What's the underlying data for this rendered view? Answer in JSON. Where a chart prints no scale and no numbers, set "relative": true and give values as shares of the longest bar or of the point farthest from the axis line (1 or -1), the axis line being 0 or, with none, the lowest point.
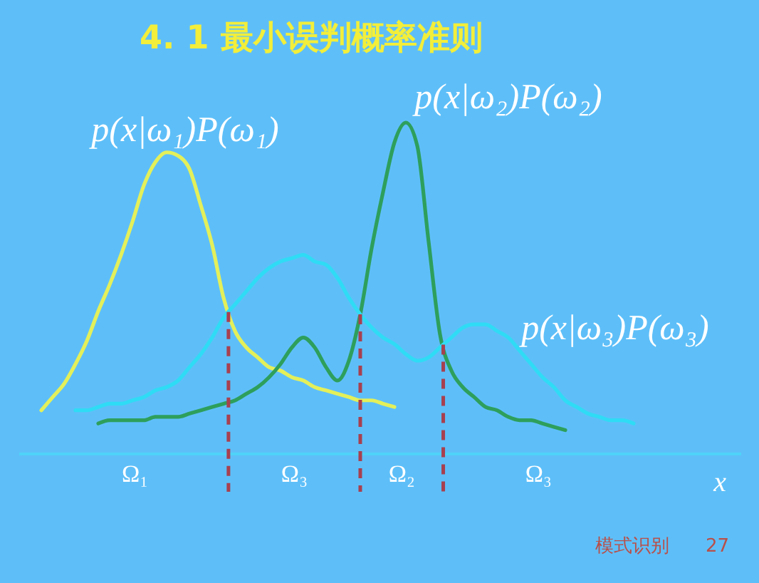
{
  "chart_data": {
    "type": "line",
    "title": "4. 1  最小误判概率准则",
    "xlabel": "x",
    "relative": true,
    "categories": [
      null,
      null,
      null,
      null,
      null,
      null,
      null,
      null,
      null,
      null,
      null,
      null,
      null,
      null,
      null,
      null,
      null,
      null,
      null,
      null,
      null,
      null,
      null,
      null,
      null,
      null,
      null,
      null,
      null,
      null,
      null,
      null,
      null,
      null,
      null,
      null,
      null,
      null,
      null,
      null,
      null,
      null,
      null,
      null,
      null,
      null,
      null,
      null,
      null,
      null,
      null,
      null,
      null
    ],
    "series": [
      {
        "name": "p(x|ω₁)P(ω₁)",
        "color": "#e4f05a",
        "values": [
          0.13,
          0.17,
          0.21,
          0.27,
          0.34,
          0.43,
          0.51,
          0.6,
          0.7,
          0.81,
          0.88,
          0.91,
          0.9,
          0.86,
          0.75,
          0.63,
          0.47,
          0.37,
          0.32,
          0.29,
          0.26,
          0.25,
          0.23,
          0.22,
          0.2,
          0.19,
          0.18,
          0.17,
          0.16,
          0.16,
          0.15,
          0.14,
          null,
          null,
          null,
          null,
          null,
          null,
          null,
          null,
          null,
          null,
          null,
          null,
          null,
          null,
          null,
          null,
          null,
          null,
          null,
          null,
          null
        ]
      },
      {
        "name": "p(x|ω₂)P(ω₂)",
        "color": "#2e9f5c",
        "values": [
          null,
          null,
          null,
          null,
          null,
          0.09,
          0.1,
          0.1,
          0.1,
          0.1,
          0.11,
          0.11,
          0.11,
          0.12,
          0.13,
          0.14,
          0.15,
          0.16,
          0.18,
          0.2,
          0.23,
          0.27,
          0.32,
          0.35,
          0.32,
          0.26,
          0.22,
          0.28,
          0.42,
          0.62,
          0.79,
          0.94,
          1.0,
          0.93,
          0.64,
          0.36,
          0.25,
          0.2,
          0.17,
          0.14,
          0.13,
          0.11,
          0.1,
          0.1,
          0.09,
          0.08,
          0.07,
          null,
          null,
          null,
          null,
          null,
          null
        ]
      },
      {
        "name": "p(x|ω₃)P(ω₃)",
        "color": "#2fdcf5",
        "values": [
          null,
          null,
          null,
          0.13,
          0.13,
          0.14,
          0.15,
          0.15,
          0.16,
          0.17,
          0.19,
          0.2,
          0.22,
          0.26,
          0.3,
          0.35,
          0.41,
          0.45,
          0.49,
          0.53,
          0.56,
          0.58,
          0.59,
          0.6,
          0.58,
          0.57,
          0.53,
          0.47,
          0.42,
          0.38,
          0.35,
          0.33,
          0.3,
          0.28,
          0.29,
          0.32,
          0.35,
          0.38,
          0.39,
          0.39,
          0.37,
          0.35,
          0.31,
          0.27,
          0.23,
          0.2,
          0.16,
          0.14,
          0.12,
          0.11,
          0.1,
          0.1,
          0.09
        ]
      }
    ],
    "ref_lines": [
      {
        "axis": "x",
        "color": "#a8404f",
        "line_style": "dashed"
      },
      {
        "axis": "x",
        "color": "#a8404f",
        "line_style": "dashed"
      },
      {
        "axis": "x",
        "color": "#a8404f",
        "line_style": "dashed"
      }
    ],
    "annotations": [
      "Ω₁",
      "Ω₃",
      "Ω₂",
      "Ω₃",
      "模式识别",
      "27"
    ]
  }
}
